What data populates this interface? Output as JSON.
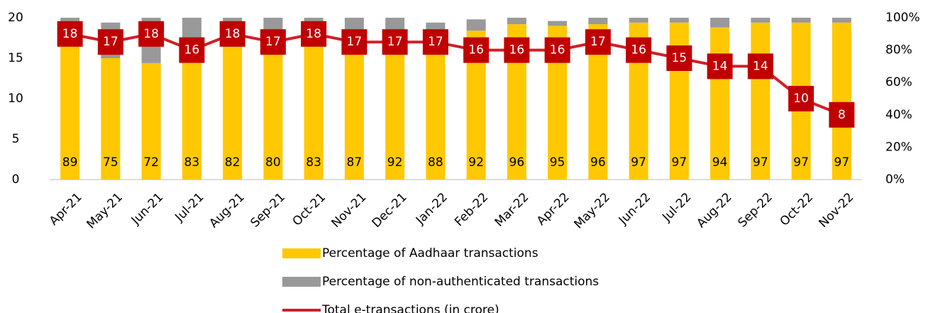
{
  "chart_data": {
    "type": "bar",
    "categories": [
      "Apr-21",
      "May-21",
      "Jun-21",
      "Jul-21",
      "Aug-21",
      "Sep-21",
      "Oct-21",
      "Nov-21",
      "Dec-21",
      "Jan-22",
      "Feb-22",
      "Mar-22",
      "Apr-22",
      "May-22",
      "Jun-22",
      "Jul-22",
      "Aug-22",
      "Sep-22",
      "Oct-22",
      "Nov-22"
    ],
    "series": [
      {
        "name": "Percentage of Aadhaar transactions",
        "type": "bar",
        "axis": "y2",
        "color": "#ffc800",
        "values": [
          89,
          75,
          72,
          83,
          82,
          80,
          83,
          87,
          92,
          88,
          92,
          96,
          95,
          96,
          97,
          97,
          94,
          97,
          97,
          97
        ]
      },
      {
        "name": "Percentage of non-authenticated transactions",
        "type": "bar",
        "axis": "y2",
        "color": "#999999",
        "values": [
          11,
          22,
          28,
          17,
          18,
          20,
          17,
          13,
          8,
          9,
          7,
          4,
          3,
          4,
          3,
          3,
          6,
          3,
          3,
          3
        ]
      },
      {
        "name": "Total e-transactions (in crore)",
        "type": "line",
        "axis": "y",
        "color": "#d11f26",
        "values": [
          18,
          17,
          18,
          16,
          18,
          17,
          18,
          17,
          17,
          17,
          16,
          16,
          16,
          17,
          16,
          15,
          14,
          14,
          10,
          8
        ]
      }
    ],
    "ylim": [
      0,
      20
    ],
    "yticks": [
      0,
      5,
      10,
      15,
      20
    ],
    "y2lim": [
      0,
      100
    ],
    "y2ticks": [
      {
        "value": 0,
        "label": "0%"
      },
      {
        "value": 20,
        "label": "20%"
      },
      {
        "value": 40,
        "label": "40%"
      },
      {
        "value": 60,
        "label": "60%"
      },
      {
        "value": 80,
        "label": "80%"
      },
      {
        "value": 100,
        "label": "100%"
      }
    ],
    "legend": "bottom"
  }
}
